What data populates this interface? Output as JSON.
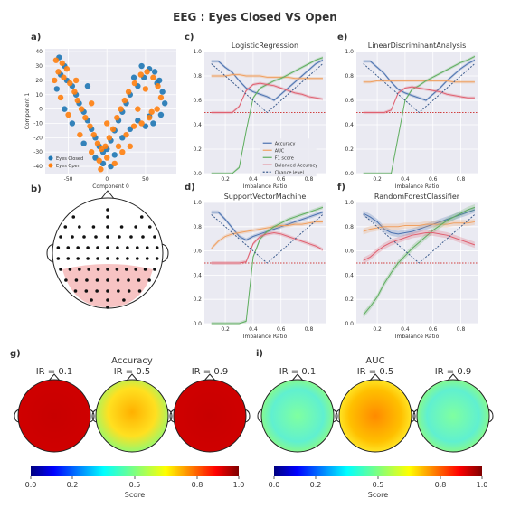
{
  "title": "EEG : Eyes Closed VS Open",
  "panel_letters": [
    "a)",
    "b)",
    "c)",
    "d)",
    "e)",
    "f)",
    "g)",
    "i)"
  ],
  "colors": {
    "accuracy": "#4c72b0",
    "auc": "#f0a060",
    "f1": "#5fae5f",
    "balanced": "#e06070",
    "chance": "#3a5a8c",
    "eyes_closed": "#1f77b4",
    "eyes_open": "#ff7f0e",
    "head_fill": "#ffffff",
    "roi": "#f6b8b8"
  },
  "chart_data": [
    {
      "id": "a",
      "type": "scatter",
      "xlabel": "Component 0",
      "ylabel": "Component 1",
      "xlim": [
        -80,
        90
      ],
      "ylim": [
        -45,
        42
      ],
      "xticks": [
        -50,
        0,
        50
      ],
      "yticks": [
        -40,
        -30,
        -20,
        -10,
        0,
        10,
        20,
        30,
        40
      ],
      "legend_position": "lower-left",
      "series": [
        {
          "name": "Eyes Closed",
          "points": [
            [
              -62,
              36
            ],
            [
              -55,
              30
            ],
            [
              -60,
              24
            ],
            [
              -52,
              20
            ],
            [
              -45,
              16
            ],
            [
              -40,
              10
            ],
            [
              -36,
              4
            ],
            [
              -30,
              -2
            ],
            [
              -25,
              -8
            ],
            [
              -20,
              -14
            ],
            [
              -15,
              -20
            ],
            [
              -10,
              -26
            ],
            [
              -5,
              -30
            ],
            [
              0,
              -28
            ],
            [
              5,
              -22
            ],
            [
              10,
              -15
            ],
            [
              15,
              -8
            ],
            [
              20,
              -2
            ],
            [
              25,
              4
            ],
            [
              30,
              10
            ],
            [
              40,
              16
            ],
            [
              48,
              22
            ],
            [
              55,
              28
            ],
            [
              62,
              26
            ],
            [
              68,
              20
            ],
            [
              72,
              12
            ],
            [
              75,
              4
            ],
            [
              70,
              -4
            ],
            [
              60,
              -10
            ],
            [
              50,
              -12
            ],
            [
              40,
              -8
            ],
            [
              30,
              -14
            ],
            [
              20,
              -20
            ],
            [
              10,
              -32
            ],
            [
              -5,
              -38
            ],
            [
              -15,
              -34
            ],
            [
              -30,
              -24
            ],
            [
              -45,
              -10
            ],
            [
              -55,
              0
            ],
            [
              -65,
              14
            ],
            [
              55,
              -5
            ],
            [
              65,
              18
            ],
            [
              45,
              30
            ],
            [
              35,
              22
            ],
            [
              -25,
              16
            ],
            [
              5,
              -40
            ]
          ]
        },
        {
          "name": "Eyes Open",
          "points": [
            [
              -66,
              34
            ],
            [
              -58,
              32
            ],
            [
              -63,
              26
            ],
            [
              -56,
              22
            ],
            [
              -48,
              18
            ],
            [
              -42,
              12
            ],
            [
              -38,
              6
            ],
            [
              -33,
              0
            ],
            [
              -28,
              -6
            ],
            [
              -22,
              -12
            ],
            [
              -17,
              -18
            ],
            [
              -12,
              -24
            ],
            [
              -7,
              -28
            ],
            [
              -2,
              -26
            ],
            [
              3,
              -20
            ],
            [
              8,
              -14
            ],
            [
              13,
              -6
            ],
            [
              18,
              0
            ],
            [
              23,
              6
            ],
            [
              28,
              12
            ],
            [
              36,
              18
            ],
            [
              44,
              24
            ],
            [
              52,
              26
            ],
            [
              60,
              22
            ],
            [
              66,
              16
            ],
            [
              70,
              8
            ],
            [
              65,
              0
            ],
            [
              55,
              -6
            ],
            [
              45,
              -10
            ],
            [
              35,
              -12
            ],
            [
              25,
              -18
            ],
            [
              15,
              -26
            ],
            [
              0,
              -34
            ],
            [
              -10,
              -36
            ],
            [
              -20,
              -30
            ],
            [
              -35,
              -18
            ],
            [
              -50,
              -4
            ],
            [
              -60,
              8
            ],
            [
              -68,
              20
            ],
            [
              -40,
              20
            ],
            [
              -20,
              4
            ],
            [
              0,
              -10
            ],
            [
              20,
              -30
            ],
            [
              40,
              0
            ],
            [
              50,
              14
            ],
            [
              -8,
              -42
            ],
            [
              10,
              -38
            ],
            [
              30,
              -26
            ],
            [
              58,
              -2
            ],
            [
              -52,
              28
            ]
          ]
        }
      ]
    },
    {
      "id": "c",
      "type": "line",
      "title": "LogisticRegression",
      "xlabel": "Imbalance Ratio",
      "xlim": [
        0.05,
        0.92
      ],
      "ylim": [
        0,
        1.0
      ],
      "xticks": [
        0.2,
        0.4,
        0.6,
        0.8
      ],
      "yticks": [
        0.0,
        0.2,
        0.4,
        0.6,
        0.8,
        1.0
      ],
      "x": [
        0.1,
        0.15,
        0.2,
        0.25,
        0.3,
        0.35,
        0.4,
        0.45,
        0.5,
        0.55,
        0.6,
        0.65,
        0.7,
        0.75,
        0.8,
        0.85,
        0.9
      ],
      "legend_position": "lower-right",
      "series": [
        {
          "name": "Accuracy",
          "values": [
            0.92,
            0.92,
            0.87,
            0.83,
            0.76,
            0.7,
            0.67,
            0.65,
            0.63,
            0.6,
            0.65,
            0.7,
            0.75,
            0.8,
            0.85,
            0.9,
            0.93
          ]
        },
        {
          "name": "AUC",
          "values": [
            0.8,
            0.8,
            0.8,
            0.81,
            0.81,
            0.8,
            0.8,
            0.8,
            0.79,
            0.79,
            0.79,
            0.79,
            0.78,
            0.78,
            0.78,
            0.78,
            0.78
          ]
        },
        {
          "name": "F1 score",
          "values": [
            0.0,
            0.0,
            0.0,
            0.0,
            0.05,
            0.35,
            0.62,
            0.7,
            0.73,
            0.76,
            0.78,
            0.81,
            0.84,
            0.87,
            0.9,
            0.93,
            0.95
          ]
        },
        {
          "name": "Balanced Accuracy",
          "values": [
            0.5,
            0.5,
            0.5,
            0.5,
            0.55,
            0.68,
            0.73,
            0.74,
            0.73,
            0.72,
            0.7,
            0.68,
            0.66,
            0.65,
            0.63,
            0.62,
            0.61
          ]
        },
        {
          "name": "Chance level",
          "values": [
            0.9,
            0.85,
            0.8,
            0.75,
            0.7,
            0.65,
            0.6,
            0.55,
            0.5,
            0.55,
            0.6,
            0.65,
            0.7,
            0.75,
            0.8,
            0.85,
            0.9
          ]
        }
      ]
    },
    {
      "id": "e",
      "type": "line",
      "title": "LinearDiscriminantAnalysis",
      "xlabel": "Imbalance Ratio",
      "xlim": [
        0.05,
        0.92
      ],
      "ylim": [
        0,
        1.0
      ],
      "xticks": [
        0.2,
        0.4,
        0.6,
        0.8
      ],
      "yticks": [
        0.0,
        0.2,
        0.4,
        0.6,
        0.8,
        1.0
      ],
      "x": [
        0.1,
        0.15,
        0.2,
        0.25,
        0.3,
        0.35,
        0.4,
        0.45,
        0.5,
        0.55,
        0.6,
        0.65,
        0.7,
        0.75,
        0.8,
        0.85,
        0.9
      ],
      "series": [
        {
          "name": "Accuracy",
          "values": [
            0.92,
            0.92,
            0.87,
            0.82,
            0.75,
            0.69,
            0.66,
            0.64,
            0.62,
            0.6,
            0.65,
            0.7,
            0.76,
            0.81,
            0.86,
            0.9,
            0.93
          ]
        },
        {
          "name": "AUC",
          "values": [
            0.75,
            0.75,
            0.76,
            0.76,
            0.76,
            0.76,
            0.76,
            0.76,
            0.76,
            0.76,
            0.76,
            0.76,
            0.76,
            0.75,
            0.75,
            0.75,
            0.75
          ]
        },
        {
          "name": "F1 score",
          "values": [
            0.0,
            0.0,
            0.0,
            0.0,
            0.0,
            0.3,
            0.6,
            0.69,
            0.72,
            0.76,
            0.79,
            0.82,
            0.85,
            0.88,
            0.91,
            0.93,
            0.96
          ]
        },
        {
          "name": "Balanced Accuracy",
          "values": [
            0.5,
            0.5,
            0.5,
            0.5,
            0.52,
            0.66,
            0.7,
            0.71,
            0.7,
            0.69,
            0.68,
            0.67,
            0.65,
            0.64,
            0.63,
            0.62,
            0.62
          ]
        },
        {
          "name": "Chance level",
          "values": [
            0.9,
            0.85,
            0.8,
            0.75,
            0.7,
            0.65,
            0.6,
            0.55,
            0.5,
            0.55,
            0.6,
            0.65,
            0.7,
            0.75,
            0.8,
            0.85,
            0.9
          ]
        }
      ]
    },
    {
      "id": "d",
      "type": "line",
      "title": "SupportVectorMachine",
      "xlabel": "Imbalance Ratio",
      "xlim": [
        0.05,
        0.92
      ],
      "ylim": [
        0,
        1.0
      ],
      "xticks": [
        0.2,
        0.4,
        0.6,
        0.8
      ],
      "yticks": [
        0.0,
        0.2,
        0.4,
        0.6,
        0.8,
        1.0
      ],
      "x": [
        0.1,
        0.15,
        0.2,
        0.25,
        0.3,
        0.35,
        0.4,
        0.45,
        0.5,
        0.55,
        0.6,
        0.65,
        0.7,
        0.75,
        0.8,
        0.85,
        0.9
      ],
      "series": [
        {
          "name": "Accuracy",
          "values": [
            0.92,
            0.92,
            0.86,
            0.79,
            0.72,
            0.69,
            0.72,
            0.74,
            0.76,
            0.78,
            0.8,
            0.82,
            0.84,
            0.86,
            0.88,
            0.9,
            0.92
          ]
        },
        {
          "name": "AUC",
          "values": [
            0.62,
            0.68,
            0.72,
            0.74,
            0.75,
            0.76,
            0.77,
            0.78,
            0.79,
            0.8,
            0.81,
            0.81,
            0.82,
            0.82,
            0.83,
            0.84,
            0.84
          ]
        },
        {
          "name": "F1 score",
          "values": [
            0.0,
            0.0,
            0.0,
            0.0,
            0.0,
            0.02,
            0.55,
            0.7,
            0.76,
            0.8,
            0.83,
            0.86,
            0.88,
            0.9,
            0.92,
            0.94,
            0.96
          ]
        },
        {
          "name": "Balanced Accuracy",
          "values": [
            0.5,
            0.5,
            0.5,
            0.5,
            0.5,
            0.51,
            0.66,
            0.72,
            0.74,
            0.75,
            0.74,
            0.72,
            0.7,
            0.68,
            0.66,
            0.64,
            0.61
          ]
        },
        {
          "name": "Chance level",
          "values": [
            0.9,
            0.85,
            0.8,
            0.75,
            0.7,
            0.65,
            0.6,
            0.55,
            0.5,
            0.55,
            0.6,
            0.65,
            0.7,
            0.75,
            0.8,
            0.85,
            0.9
          ]
        }
      ]
    },
    {
      "id": "f",
      "type": "line",
      "title": "RandomForestClassifier",
      "xlabel": "Imbalance Ratio",
      "xlim": [
        0.05,
        0.92
      ],
      "ylim": [
        0,
        1.0
      ],
      "xticks": [
        0.2,
        0.4,
        0.6,
        0.8
      ],
      "yticks": [
        0.0,
        0.2,
        0.4,
        0.6,
        0.8,
        1.0
      ],
      "x": [
        0.1,
        0.15,
        0.2,
        0.25,
        0.3,
        0.35,
        0.4,
        0.45,
        0.5,
        0.55,
        0.6,
        0.65,
        0.7,
        0.75,
        0.8,
        0.85,
        0.9
      ],
      "series": [
        {
          "name": "Accuracy",
          "values": [
            0.91,
            0.88,
            0.84,
            0.78,
            0.75,
            0.74,
            0.75,
            0.76,
            0.78,
            0.8,
            0.82,
            0.84,
            0.86,
            0.88,
            0.9,
            0.92,
            0.94
          ]
        },
        {
          "name": "AUC",
          "values": [
            0.76,
            0.78,
            0.79,
            0.8,
            0.8,
            0.8,
            0.81,
            0.81,
            0.81,
            0.82,
            0.82,
            0.82,
            0.82,
            0.83,
            0.83,
            0.83,
            0.84
          ]
        },
        {
          "name": "F1 score",
          "values": [
            0.07,
            0.14,
            0.22,
            0.33,
            0.42,
            0.5,
            0.56,
            0.62,
            0.67,
            0.72,
            0.77,
            0.81,
            0.85,
            0.88,
            0.91,
            0.94,
            0.96
          ]
        },
        {
          "name": "Balanced Accuracy",
          "values": [
            0.52,
            0.55,
            0.6,
            0.64,
            0.67,
            0.69,
            0.71,
            0.73,
            0.74,
            0.75,
            0.75,
            0.74,
            0.73,
            0.71,
            0.69,
            0.67,
            0.65
          ]
        },
        {
          "name": "Chance level",
          "values": [
            0.9,
            0.85,
            0.8,
            0.75,
            0.7,
            0.65,
            0.6,
            0.55,
            0.5,
            0.55,
            0.6,
            0.65,
            0.7,
            0.75,
            0.8,
            0.85,
            0.9
          ]
        }
      ]
    },
    {
      "id": "g",
      "type": "heatmap",
      "title": "Accuracy",
      "maps": [
        {
          "label": "IR = 0.1",
          "value": 0.98
        },
        {
          "label": "IR = 0.5",
          "value": 0.72
        },
        {
          "label": "IR = 0.9",
          "value": 0.98
        }
      ],
      "colorbar": {
        "label": "Score",
        "ticks": [
          "0.0",
          "0.2",
          "0.5",
          "0.8",
          "1.0"
        ],
        "range": [
          0.0,
          1.0
        ]
      }
    },
    {
      "id": "i",
      "type": "heatmap",
      "title": "AUC",
      "maps": [
        {
          "label": "IR = 0.1",
          "value": 0.52
        },
        {
          "label": "IR = 0.5",
          "value": 0.8
        },
        {
          "label": "IR = 0.9",
          "value": 0.55
        }
      ],
      "colorbar": {
        "label": "Score",
        "ticks": [
          "0.0",
          "0.2",
          "0.5",
          "0.8",
          "1.0"
        ],
        "range": [
          0.0,
          1.0
        ]
      }
    }
  ]
}
